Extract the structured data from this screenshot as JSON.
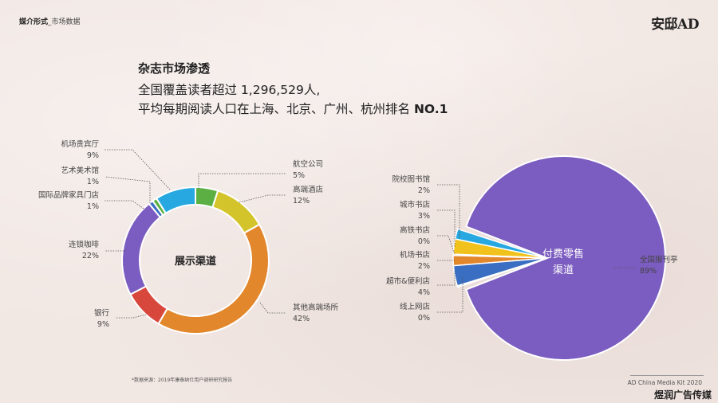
{
  "header": {
    "section": "媒介形式",
    "sub": "_市场数据",
    "logo": "安邸AD"
  },
  "title": "杂志市场渗透",
  "headline": {
    "line1": "全国覆盖读者超过 1,296,529人,",
    "line2_pre": "平均每期阅读人口在上海、北京、广州、杭州排名 ",
    "line2_bold": "NO.1"
  },
  "footer": {
    "source": "*数据来源：2019年康泰纳仕用户调研研究报告",
    "kit": "AD China Media Kit 2020",
    "watermark": "煜润广告传媒"
  },
  "chart_data": [
    {
      "type": "pie",
      "variant": "donut",
      "center_label": "展示渠道",
      "slices": [
        {
          "name": "航空公司",
          "pct_label": "5%",
          "value": 5,
          "color": "#5cb043"
        },
        {
          "name": "高端酒店",
          "pct_label": "12%",
          "value": 12,
          "color": "#d4c42c"
        },
        {
          "name": "其他高端场所",
          "pct_label": "42%",
          "value": 42,
          "color": "#e3872d"
        },
        {
          "name": "银行",
          "pct_label": "9%",
          "value": 9,
          "color": "#d8473c"
        },
        {
          "name": "连锁咖啡",
          "pct_label": "22%",
          "value": 22,
          "color": "#7b5cc0"
        },
        {
          "name": "国际品牌家具门店",
          "pct_label": "1%",
          "value": 1,
          "color": "#3a6ec2"
        },
        {
          "name": "艺术美术馆",
          "pct_label": "1%",
          "value": 1,
          "color": "#5cb043"
        },
        {
          "name": "机场贵宾厅",
          "pct_label": "9%",
          "value": 9,
          "color": "#27a8e0"
        }
      ]
    },
    {
      "type": "pie",
      "variant": "exploded",
      "center_label_line1": "付费零售",
      "center_label_line2": "渠道",
      "slices": [
        {
          "name": "全国报刊亭",
          "pct_label": "89%",
          "value": 89,
          "color": "#7b5cc0"
        },
        {
          "name": "院校图书馆",
          "pct_label": "2%",
          "value": 2,
          "color": "#27a8e0"
        },
        {
          "name": "城市书店",
          "pct_label": "3%",
          "value": 3,
          "color": "#f2c21c"
        },
        {
          "name": "高铁书店",
          "pct_label": "0%",
          "value": 0,
          "color": "#9e9e9e"
        },
        {
          "name": "机场书店",
          "pct_label": "2%",
          "value": 2,
          "color": "#e3872d"
        },
        {
          "name": "超市&便利店",
          "pct_label": "4%",
          "value": 4,
          "color": "#3a6ec2"
        },
        {
          "name": "线上网店",
          "pct_label": "0%",
          "value": 0,
          "color": "#5cb043"
        }
      ]
    }
  ]
}
